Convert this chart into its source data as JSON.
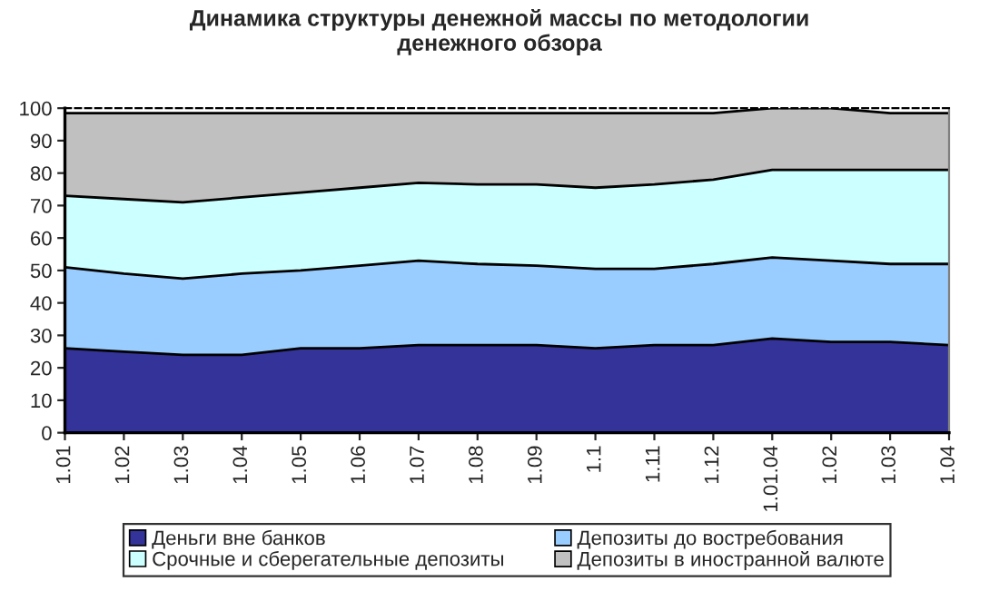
{
  "chart_data": {
    "type": "area",
    "stacked": true,
    "title": "Динамика структуры денежной массы по методологии\nденежного обзора",
    "categories": [
      "1.01",
      "1.02",
      "1.03",
      "1.04",
      "1.05",
      "1.06",
      "1.07",
      "1.08",
      "1.09",
      "1.1",
      "1.11",
      "1.12",
      "1.01.04",
      "1.02",
      "1.03",
      "1.04"
    ],
    "series": [
      {
        "name": "Деньги вне банков",
        "color": "#333399",
        "values": [
          26,
          25,
          24,
          24,
          26,
          26,
          27,
          27,
          27,
          26,
          27,
          27,
          29,
          28,
          28,
          27
        ]
      },
      {
        "name": "Депозиты до востребования",
        "color": "#99ccff",
        "values": [
          25,
          24,
          23.5,
          25,
          24,
          25.5,
          26,
          25,
          24.5,
          24.5,
          23.5,
          25,
          25,
          25,
          24,
          25
        ]
      },
      {
        "name": "Срочные и сберегательные депозиты",
        "color": "#ccffff",
        "values": [
          22,
          23,
          23.5,
          23.5,
          24,
          24,
          24,
          24.5,
          25,
          25,
          26,
          26,
          27,
          28,
          29,
          29
        ]
      },
      {
        "name": "Депозиты в иностранной валюте",
        "color": "#c0c0c0",
        "values": [
          25.5,
          26.5,
          27.5,
          26,
          24.5,
          23,
          21.5,
          22,
          22,
          23,
          22,
          20.5,
          19,
          19,
          17.5,
          17.5
        ]
      }
    ],
    "ylim": [
      0,
      100
    ],
    "yticks": [
      0,
      10,
      20,
      30,
      40,
      50,
      60,
      70,
      80,
      90,
      100
    ],
    "legend": "bottom"
  }
}
